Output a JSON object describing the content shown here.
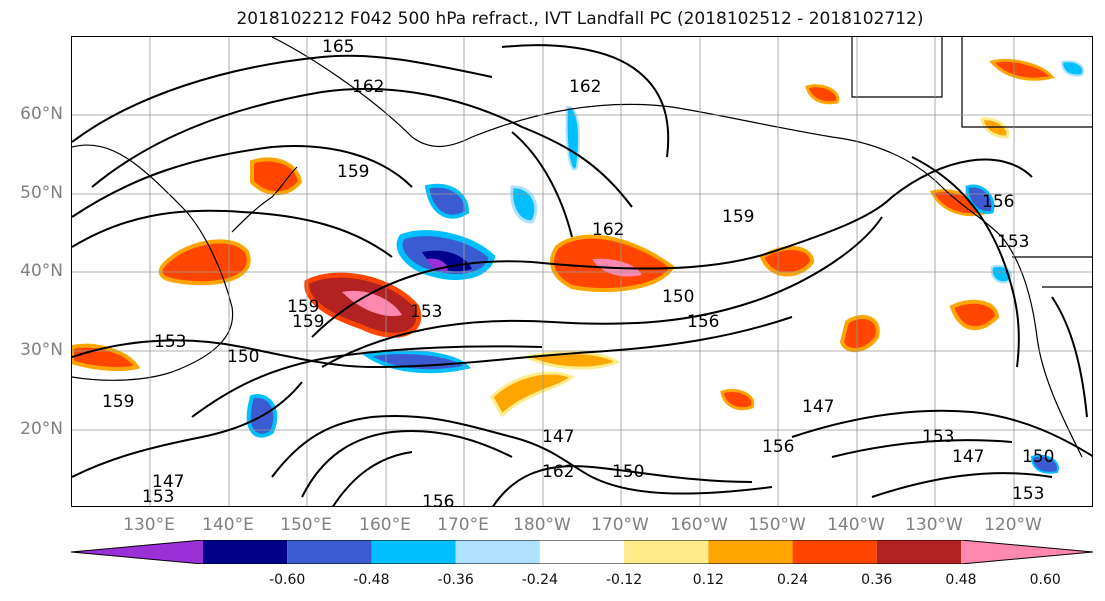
{
  "title": "2018102212 F042 500 hPa refract., IVT Landfall PC (2018102512 - 2018102712)",
  "lat_labels": [
    "60°N",
    "50°N",
    "40°N",
    "30°N",
    "20°N"
  ],
  "lon_labels": [
    "130°E",
    "140°E",
    "150°E",
    "160°E",
    "170°E",
    "180°W",
    "170°W",
    "160°W",
    "150°W",
    "140°W",
    "130°W",
    "120°W"
  ],
  "colorbar": {
    "colors": [
      "#9b30d8",
      "#00008b",
      "#3b5bd1",
      "#00bfff",
      "#b0e2ff",
      "#ffffff",
      "#ffec8b",
      "#ffa500",
      "#ff4500",
      "#b22222",
      "#ff88b0"
    ],
    "tick_labels": [
      "-0.60",
      "-0.48",
      "-0.36",
      "-0.24",
      "-0.12",
      "0.12",
      "0.24",
      "0.36",
      "0.48",
      "0.60"
    ]
  },
  "contour_labels": [
    "165",
    "162",
    "162",
    "159",
    "162",
    "159",
    "156",
    "153",
    "150",
    "156",
    "153",
    "159",
    "153",
    "150",
    "159",
    "147",
    "147",
    "153",
    "162",
    "147",
    "150",
    "156",
    "159",
    "153",
    "147",
    "150",
    "153",
    "156"
  ]
}
